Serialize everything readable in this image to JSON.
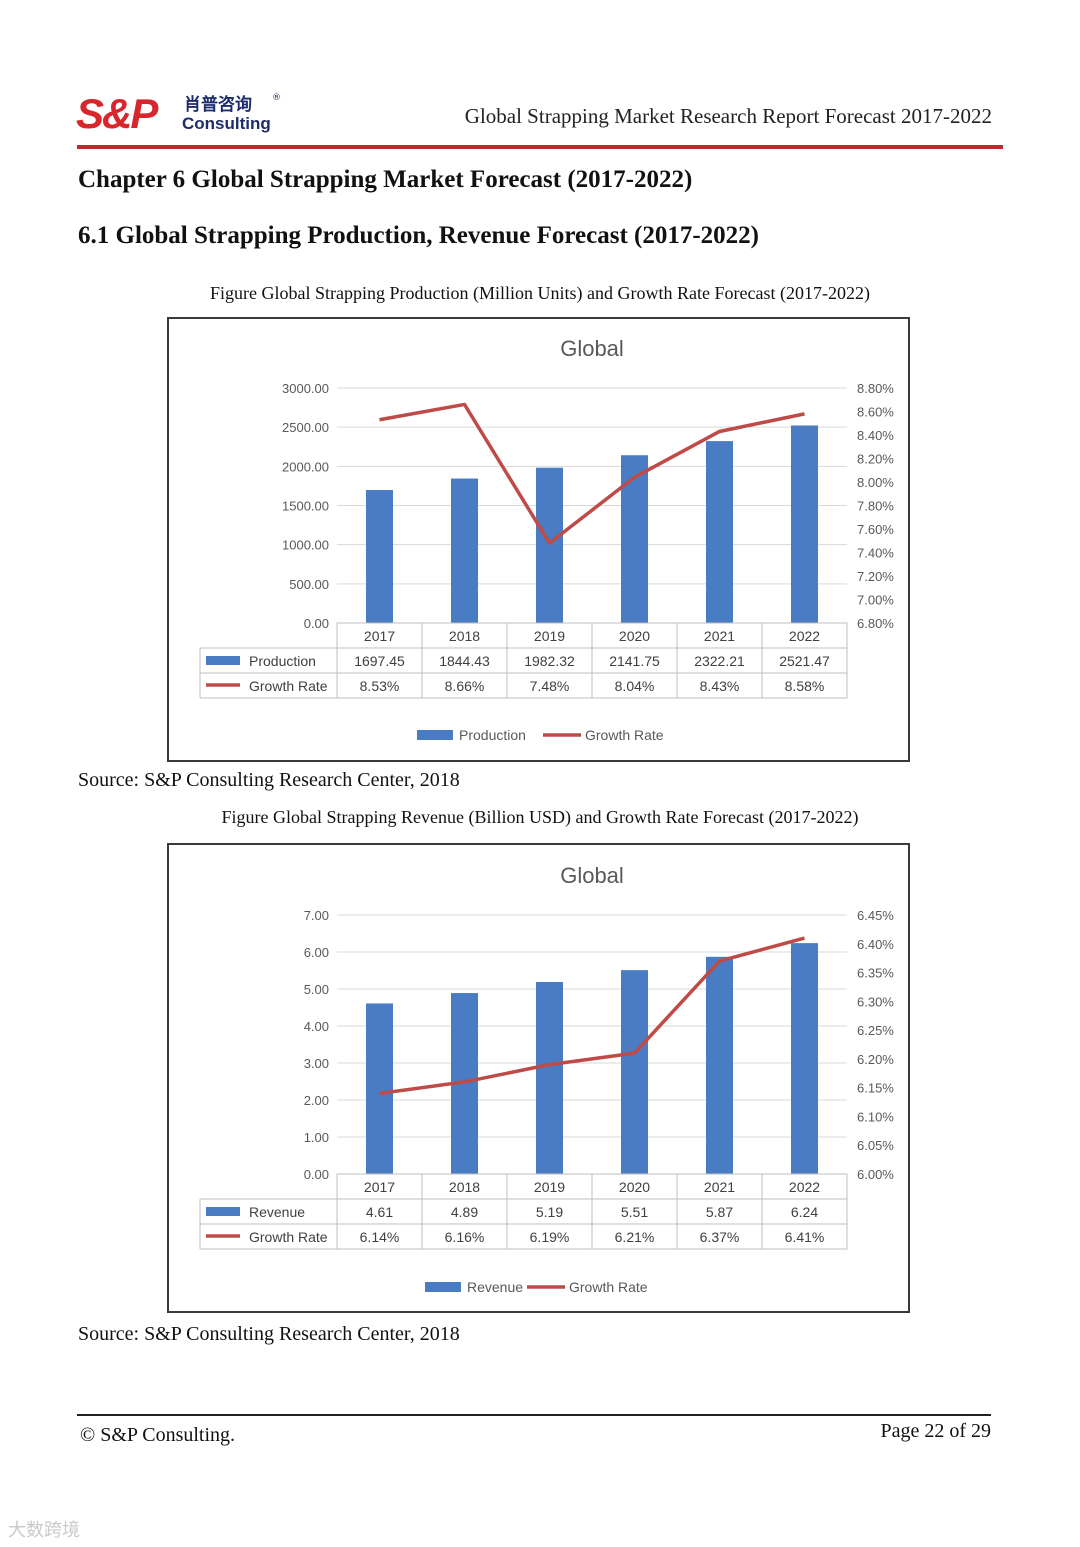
{
  "header": {
    "logo_text": "S&P",
    "logo_cn": "肖普咨询",
    "logo_sub": "Consulting",
    "logo_reg": "®",
    "report_title": "Global Strapping Market Research Report Forecast 2017-2022",
    "accent_color": "#c1272d"
  },
  "chapter_title": "Chapter 6 Global Strapping Market Forecast (2017-2022)",
  "section_title": "6.1 Global Strapping Production, Revenue Forecast (2017-2022)",
  "figures": [
    {
      "caption": "Figure Global Strapping Production (Million Units) and Growth Rate Forecast (2017-2022)",
      "source": "Source: S&P Consulting Research Center, 2018"
    },
    {
      "caption": "Figure Global Strapping Revenue (Billion USD) and Growth Rate Forecast (2017-2022)",
      "source": "Source: S&P Consulting Research Center, 2018"
    }
  ],
  "chart_data": [
    {
      "type": "bar",
      "title": "Global",
      "categories": [
        "2017",
        "2018",
        "2019",
        "2020",
        "2021",
        "2022"
      ],
      "series": [
        {
          "name": "Production",
          "type": "bar",
          "axis": "left",
          "color": "#4a7cc3",
          "values": [
            1697.45,
            1844.43,
            1982.32,
            2141.75,
            2322.21,
            2521.47
          ],
          "labels": [
            "1697.45",
            "1844.43",
            "1982.32",
            "2141.75",
            "2322.21",
            "2521.47"
          ]
        },
        {
          "name": "Growth Rate",
          "type": "line",
          "axis": "right",
          "color": "#be4b48",
          "values": [
            8.53,
            8.66,
            7.48,
            8.04,
            8.43,
            8.58
          ],
          "labels": [
            "8.53%",
            "8.66%",
            "7.48%",
            "8.04%",
            "8.43%",
            "8.58%"
          ]
        }
      ],
      "y_left": {
        "ylim": [
          0,
          3000
        ],
        "ticks": [
          "0.00",
          "500.00",
          "1000.00",
          "1500.00",
          "2000.00",
          "2500.00",
          "3000.00"
        ]
      },
      "y_right": {
        "ylim": [
          6.8,
          8.8
        ],
        "ticks": [
          "6.80%",
          "7.00%",
          "7.20%",
          "7.40%",
          "7.60%",
          "7.80%",
          "8.00%",
          "8.20%",
          "8.40%",
          "8.60%",
          "8.80%"
        ]
      },
      "grid": true,
      "legend": "bottom",
      "data_table": true
    },
    {
      "type": "bar",
      "title": "Global",
      "categories": [
        "2017",
        "2018",
        "2019",
        "2020",
        "2021",
        "2022"
      ],
      "series": [
        {
          "name": "Revenue",
          "type": "bar",
          "axis": "left",
          "color": "#4a7cc3",
          "values": [
            4.61,
            4.89,
            5.19,
            5.51,
            5.87,
            6.24
          ],
          "labels": [
            "4.61",
            "4.89",
            "5.19",
            "5.51",
            "5.87",
            "6.24"
          ]
        },
        {
          "name": "Growth Rate",
          "type": "line",
          "axis": "right",
          "color": "#be4b48",
          "values": [
            6.14,
            6.16,
            6.19,
            6.21,
            6.37,
            6.41
          ],
          "labels": [
            "6.14%",
            "6.16%",
            "6.19%",
            "6.21%",
            "6.37%",
            "6.41%"
          ]
        }
      ],
      "y_left": {
        "ylim": [
          0,
          7
        ],
        "ticks": [
          "0.00",
          "1.00",
          "2.00",
          "3.00",
          "4.00",
          "5.00",
          "6.00",
          "7.00"
        ]
      },
      "y_right": {
        "ylim": [
          6.0,
          6.45
        ],
        "ticks": [
          "6.00%",
          "6.05%",
          "6.10%",
          "6.15%",
          "6.20%",
          "6.25%",
          "6.30%",
          "6.35%",
          "6.40%",
          "6.45%"
        ]
      },
      "grid": true,
      "legend": "bottom",
      "data_table": true
    }
  ],
  "footer": {
    "copyright": "© S&P Consulting.",
    "page": "Page  22 of 29"
  },
  "watermark": "大数跨境"
}
